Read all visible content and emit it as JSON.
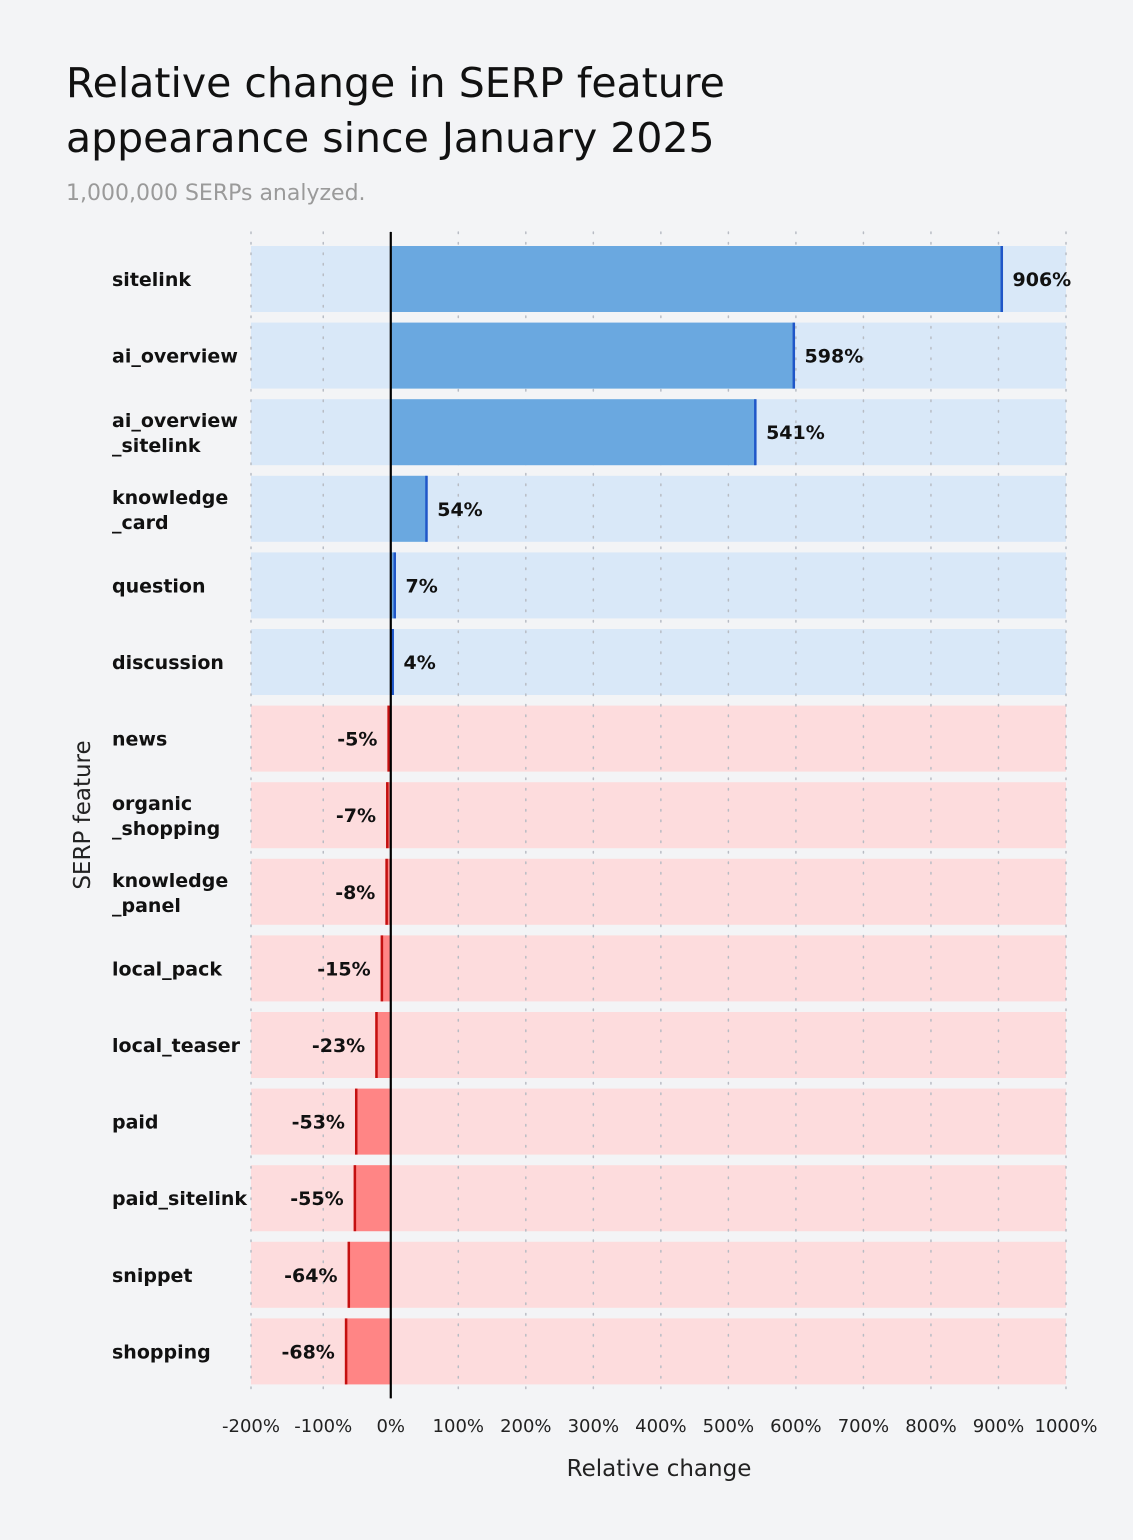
{
  "title_lines": [
    "Relative change in SERP feature",
    "appearance since January 2025"
  ],
  "subtitle": "1,000,000 SERPs analyzed.",
  "chart_data": {
    "type": "bar",
    "orientation": "horizontal",
    "title": "Relative change in SERP feature appearance since January 2025",
    "subtitle": "1,000,000 SERPs analyzed.",
    "xlabel": "Relative change",
    "ylabel": "SERP feature",
    "xlim": [
      -200,
      1000
    ],
    "xticks": [
      "-200%",
      "-100%",
      "0%",
      "100%",
      "200%",
      "300%",
      "400%",
      "500%",
      "600%",
      "700%",
      "800%",
      "900%",
      "1000%"
    ],
    "xtick_values": [
      -200,
      -100,
      0,
      100,
      200,
      300,
      400,
      500,
      600,
      700,
      800,
      900,
      1000
    ],
    "grid": "vertical dotted",
    "categories": [
      "sitelink",
      "ai_overview",
      "ai_overview_sitelink",
      "knowledge_card",
      "question",
      "discussion",
      "news",
      "organic_shopping",
      "knowledge_panel",
      "local_pack",
      "local_teaser",
      "paid",
      "paid_sitelink",
      "snippet",
      "shopping"
    ],
    "values": [
      906,
      598,
      541,
      54,
      7,
      4,
      -5,
      -7,
      -8,
      -15,
      -23,
      -53,
      -55,
      -64,
      -68
    ],
    "value_labels": [
      "906%",
      "598%",
      "541%",
      "54%",
      "7%",
      "4%",
      "-5%",
      "-7%",
      "-8%",
      "-15%",
      "-23%",
      "-53%",
      "-55%",
      "-64%",
      "-68%"
    ],
    "colors": {
      "positive_bar": "#6aa8e0",
      "positive_edge": "#1f56c8",
      "positive_band": "#d9e8f8",
      "negative_bar": "#ff8585",
      "negative_edge": "#c41010",
      "negative_band": "#fddcdd",
      "zero_line": "#000000",
      "background": "#f3f4f6"
    }
  }
}
